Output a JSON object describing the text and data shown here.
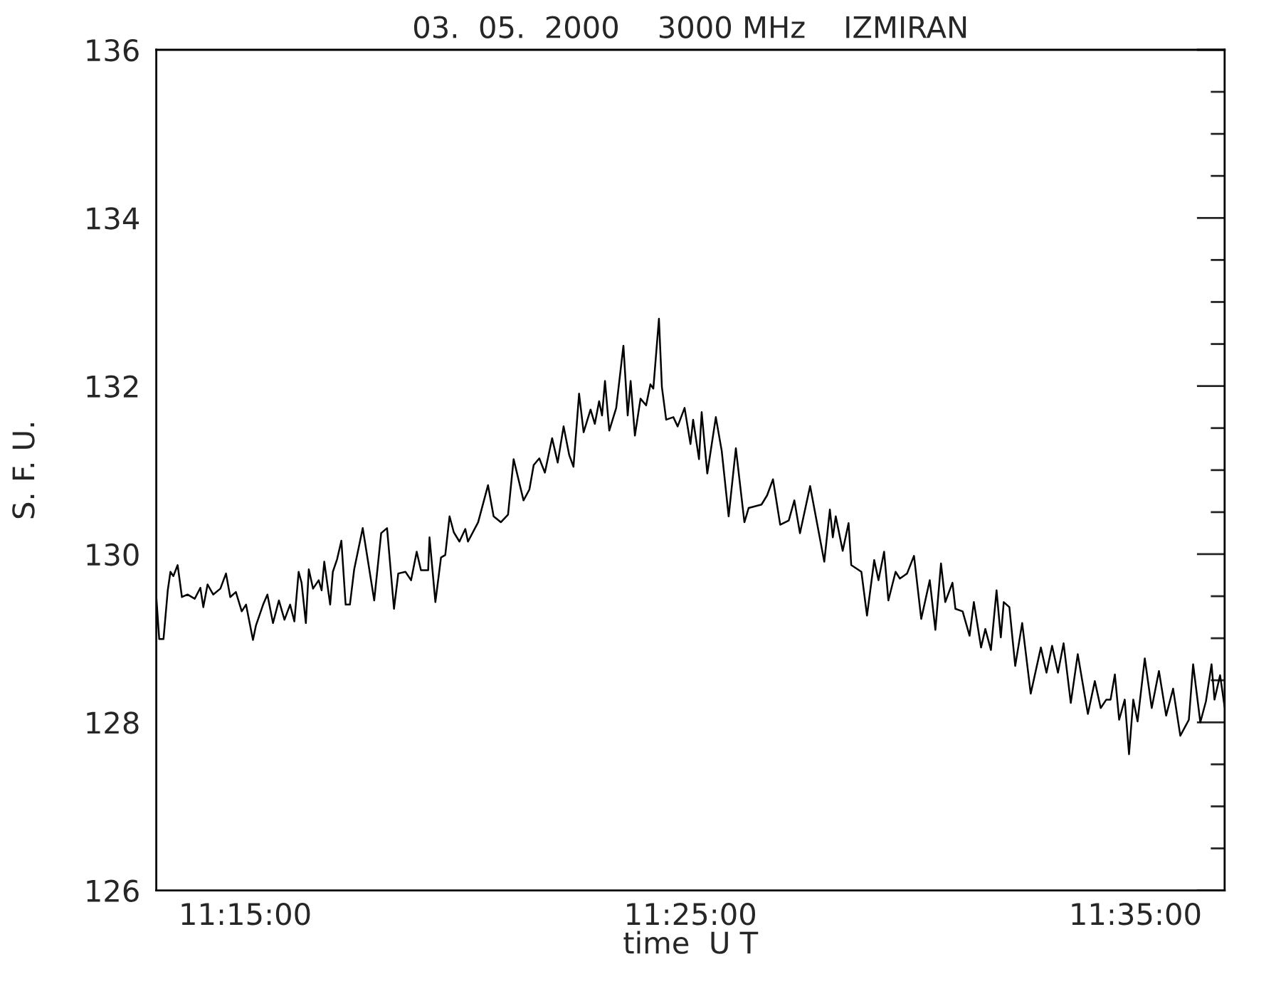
{
  "chart_data": {
    "type": "line",
    "title": "03.  05.  2000    3000 MHz    IZMIRAN",
    "xlabel": "time  U T",
    "ylabel": "S. F. U.",
    "xlim": [
      11.2167,
      11.6167
    ],
    "xticks": [
      {
        "value": 11.25,
        "label": "11:15:00"
      },
      {
        "value": 11.4167,
        "label": "11:25:00"
      },
      {
        "value": 11.5833,
        "label": "11:35:00"
      }
    ],
    "ylim": [
      126,
      136
    ],
    "yticks": [
      126,
      128,
      130,
      132,
      134,
      136
    ],
    "grid": false,
    "marker": "none",
    "line_style": "solid",
    "series": [
      {
        "color": "#000000",
        "x": [
          11.2167,
          11.2178,
          11.2194,
          11.221,
          11.222,
          11.2231,
          11.2247,
          11.2263,
          11.2284,
          11.2311,
          11.2332,
          11.2343,
          11.2359,
          11.238,
          11.2407,
          11.2428,
          11.2444,
          11.2465,
          11.2487,
          11.2503,
          11.2529,
          11.254,
          11.2567,
          11.2583,
          11.2604,
          11.2626,
          11.2647,
          11.2668,
          11.2684,
          11.27,
          11.2711,
          11.2727,
          11.2738,
          11.2754,
          11.2775,
          11.2786,
          11.2796,
          11.2818,
          11.2828,
          11.2844,
          11.286,
          11.2876,
          11.2892,
          11.2908,
          11.294,
          11.2983,
          11.3009,
          11.3031,
          11.3057,
          11.3073,
          11.31,
          11.3121,
          11.3142,
          11.3158,
          11.3185,
          11.319,
          11.3212,
          11.3233,
          11.3249,
          11.3265,
          11.3281,
          11.3302,
          11.3324,
          11.3334,
          11.3372,
          11.3409,
          11.343,
          11.3457,
          11.3484,
          11.3505,
          11.3542,
          11.3564,
          11.358,
          11.3601,
          11.3622,
          11.3649,
          11.367,
          11.3692,
          11.3713,
          11.3729,
          11.375,
          11.3767,
          11.3793,
          11.3809,
          11.3825,
          11.3836,
          11.3847,
          11.3863,
          11.3889,
          11.3916,
          11.3932,
          11.3943,
          11.3959,
          11.398,
          11.4001,
          11.4017,
          11.4028,
          11.4049,
          11.406,
          11.4076,
          11.4103,
          11.4119,
          11.4145,
          11.4167,
          11.4177,
          11.4199,
          11.4209,
          11.423,
          11.4262,
          11.4284,
          11.431,
          11.4337,
          11.4369,
          11.4385,
          11.4433,
          11.4454,
          11.4476,
          11.4503,
          11.4535,
          11.4556,
          11.4577,
          11.4615,
          11.4668,
          11.4689,
          11.47,
          11.4711,
          11.4737,
          11.4759,
          11.4769,
          11.4807,
          11.4828,
          11.4855,
          11.4871,
          11.4892,
          11.4908,
          11.4935,
          11.4951,
          11.4978,
          11.5004,
          11.5031,
          11.5063,
          11.5084,
          11.5105,
          11.5121,
          11.5148,
          11.5159,
          11.5186,
          11.5212,
          11.5228,
          11.5255,
          11.5271,
          11.5292,
          11.5313,
          11.5329,
          11.534,
          11.5361,
          11.5383,
          11.5409,
          11.5441,
          11.5479,
          11.55,
          11.5521,
          11.5543,
          11.5564,
          11.5591,
          11.5617,
          11.5655,
          11.5681,
          11.5703,
          11.5724,
          11.574,
          11.5756,
          11.5772,
          11.5793,
          11.5809,
          11.5825,
          11.5841,
          11.5868,
          11.5894,
          11.5921,
          11.5948,
          11.5974,
          11.6001,
          11.6033,
          11.6049,
          11.6076,
          11.6097,
          11.6118,
          11.6129,
          11.615,
          11.6167
        ],
        "values": [
          129.5,
          128.99,
          128.99,
          129.57,
          129.79,
          129.74,
          129.87,
          129.49,
          129.52,
          129.47,
          129.6,
          129.37,
          129.64,
          129.52,
          129.59,
          129.77,
          129.49,
          129.55,
          129.32,
          129.4,
          128.98,
          129.15,
          129.4,
          129.52,
          129.18,
          129.45,
          129.22,
          129.4,
          129.2,
          129.79,
          129.66,
          129.18,
          129.82,
          129.59,
          129.69,
          129.57,
          129.91,
          129.4,
          129.79,
          129.94,
          130.16,
          129.4,
          129.4,
          129.82,
          130.31,
          129.45,
          130.25,
          130.31,
          129.35,
          129.77,
          129.79,
          129.69,
          130.03,
          129.81,
          129.81,
          130.2,
          129.43,
          129.96,
          129.99,
          130.45,
          130.26,
          130.15,
          130.3,
          130.15,
          130.38,
          130.82,
          130.45,
          130.38,
          130.47,
          131.13,
          130.64,
          130.77,
          131.06,
          131.14,
          130.97,
          131.38,
          131.09,
          131.52,
          131.18,
          131.04,
          131.91,
          131.45,
          131.72,
          131.55,
          131.82,
          131.65,
          132.06,
          131.47,
          131.74,
          132.48,
          131.65,
          132.06,
          131.41,
          131.85,
          131.77,
          132.02,
          131.97,
          132.8,
          131.99,
          131.6,
          131.63,
          131.52,
          131.74,
          131.31,
          131.6,
          131.13,
          131.69,
          130.96,
          131.63,
          131.23,
          130.45,
          131.26,
          130.38,
          130.55,
          130.59,
          130.7,
          130.89,
          130.35,
          130.4,
          130.64,
          130.25,
          130.81,
          129.91,
          130.53,
          130.2,
          130.45,
          130.04,
          130.37,
          129.87,
          129.79,
          129.27,
          129.93,
          129.69,
          130.03,
          129.45,
          129.79,
          129.71,
          129.77,
          129.98,
          129.23,
          129.69,
          129.1,
          129.89,
          129.43,
          129.66,
          129.35,
          129.32,
          129.03,
          129.43,
          128.89,
          129.11,
          128.86,
          129.57,
          129.01,
          129.43,
          129.37,
          128.67,
          129.18,
          128.34,
          128.89,
          128.59,
          128.91,
          128.59,
          128.94,
          128.23,
          128.81,
          128.1,
          128.49,
          128.17,
          128.27,
          128.27,
          128.57,
          128.03,
          128.27,
          127.62,
          128.27,
          128.01,
          128.76,
          128.17,
          128.61,
          128.08,
          128.4,
          127.84,
          128.03,
          128.69,
          128.0,
          128.25,
          128.69,
          128.27,
          128.56,
          128.18
        ]
      }
    ]
  }
}
